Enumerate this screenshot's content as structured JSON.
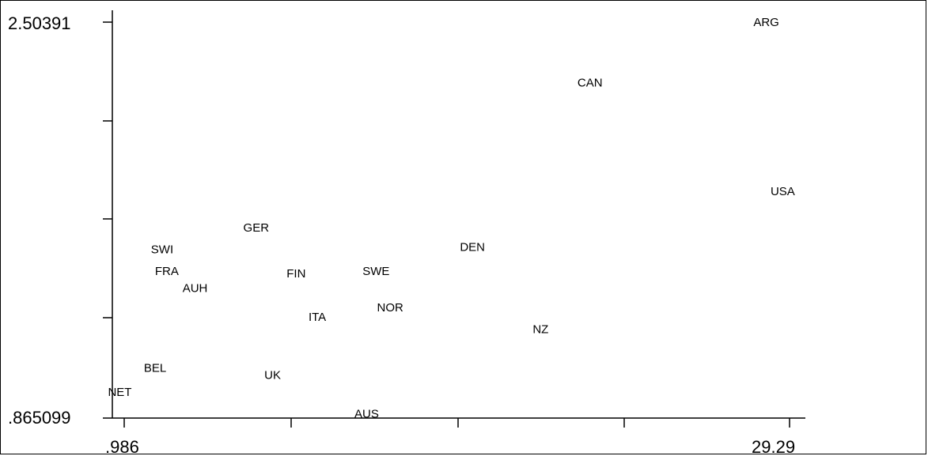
{
  "chart_data": {
    "type": "scatter",
    "title": "",
    "xlabel": "",
    "ylabel": "",
    "xlim": [
      0.986,
      29.29
    ],
    "ylim": [
      0.865099,
      2.50391
    ],
    "grid": false,
    "marker_style": "country-code text labels",
    "x_tick_labels": [
      ".986",
      "29.29"
    ],
    "y_tick_labels": [
      ".865099",
      "2.50391"
    ],
    "points": [
      {
        "label": "ARG",
        "x": 28.3,
        "y": 2.5
      },
      {
        "label": "CAN",
        "x": 20.8,
        "y": 2.25
      },
      {
        "label": "USA",
        "x": 29.0,
        "y": 1.8
      },
      {
        "label": "DEN",
        "x": 15.8,
        "y": 1.57
      },
      {
        "label": "GER",
        "x": 6.6,
        "y": 1.65
      },
      {
        "label": "SWI",
        "x": 2.6,
        "y": 1.56
      },
      {
        "label": "FRA",
        "x": 2.8,
        "y": 1.47
      },
      {
        "label": "FIN",
        "x": 8.3,
        "y": 1.46
      },
      {
        "label": "SWE",
        "x": 11.7,
        "y": 1.47
      },
      {
        "label": "AUH",
        "x": 4.0,
        "y": 1.4
      },
      {
        "label": "NOR",
        "x": 12.3,
        "y": 1.32
      },
      {
        "label": "ITA",
        "x": 9.2,
        "y": 1.28
      },
      {
        "label": "NZ",
        "x": 18.7,
        "y": 1.23
      },
      {
        "label": "BEL",
        "x": 2.3,
        "y": 1.07
      },
      {
        "label": "UK",
        "x": 7.3,
        "y": 1.04
      },
      {
        "label": "NET",
        "x": 0.8,
        "y": 0.97
      },
      {
        "label": "AUS",
        "x": 11.3,
        "y": 0.88
      }
    ]
  }
}
